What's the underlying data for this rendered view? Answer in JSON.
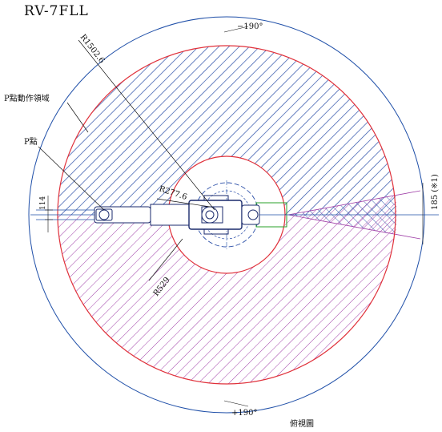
{
  "title": "RV-7FLL",
  "labels": {
    "angle_top": "−190°",
    "angle_bottom": "+190°",
    "radius_outer": "R1502.6",
    "radius_inner": "R277.6",
    "radius_mid": "R529",
    "p_area": "P點動作領域",
    "p_point": "P點",
    "dim_left": "114",
    "dim_right": "185 (※1)",
    "view_name": "俯視圖"
  },
  "colors": {
    "outer_circle": "#1f4fa8",
    "boundary": "#e0303a",
    "hatch_blue": "#2b4fa8",
    "hatch_purple": "#a040a8",
    "inner_green": "#2aa02a",
    "robot": "#1a2a6c"
  }
}
